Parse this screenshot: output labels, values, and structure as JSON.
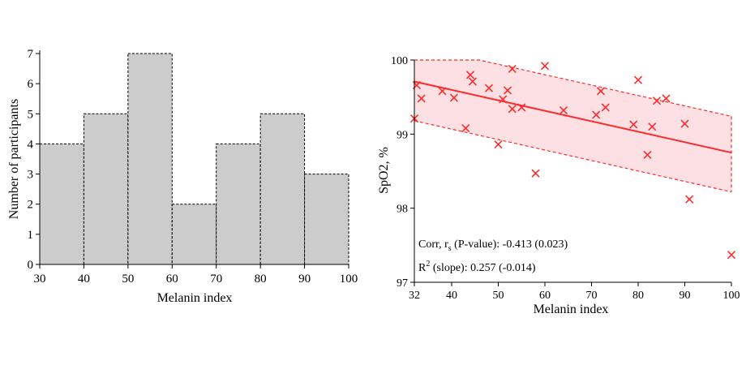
{
  "chart_data": [
    {
      "type": "bar",
      "title": "",
      "xlabel": "Melanin index",
      "ylabel": "Number of participants",
      "bins": [
        [
          30,
          40
        ],
        [
          40,
          50
        ],
        [
          50,
          60
        ],
        [
          60,
          70
        ],
        [
          70,
          80
        ],
        [
          80,
          90
        ],
        [
          90,
          100
        ]
      ],
      "values": [
        4,
        5,
        7,
        2,
        4,
        5,
        3
      ],
      "xlim": [
        30,
        100
      ],
      "ylim": [
        0,
        7
      ],
      "x_ticks": [
        "30",
        "40",
        "50",
        "60",
        "70",
        "80",
        "90",
        "100"
      ],
      "y_ticks": [
        "0",
        "1",
        "2",
        "3",
        "4",
        "5",
        "6",
        "7"
      ],
      "bar_fill": "#cccccc",
      "bar_edge": "#000000",
      "grid": false
    },
    {
      "type": "scatter",
      "title": "",
      "xlabel": "Melanin index",
      "ylabel": "SpO2, %",
      "xlim": [
        32,
        100
      ],
      "ylim": [
        97,
        100
      ],
      "x_ticks": [
        "32",
        "40",
        "50",
        "60",
        "70",
        "80",
        "90",
        "100"
      ],
      "y_ticks": [
        "97",
        "98",
        "99",
        "100"
      ],
      "marker": "x",
      "color": "#ff2a2a",
      "band_color": "#fde0e4",
      "points": [
        {
          "x": 32,
          "y": 99.21
        },
        {
          "x": 32.5,
          "y": 99.66
        },
        {
          "x": 33.5,
          "y": 99.48
        },
        {
          "x": 38,
          "y": 99.58
        },
        {
          "x": 40.5,
          "y": 99.49
        },
        {
          "x": 43,
          "y": 99.08
        },
        {
          "x": 44,
          "y": 99.8
        },
        {
          "x": 44.5,
          "y": 99.71
        },
        {
          "x": 48,
          "y": 99.62
        },
        {
          "x": 50,
          "y": 98.86
        },
        {
          "x": 51,
          "y": 99.47
        },
        {
          "x": 52,
          "y": 99.59
        },
        {
          "x": 53,
          "y": 99.88
        },
        {
          "x": 53,
          "y": 99.34
        },
        {
          "x": 55,
          "y": 99.36
        },
        {
          "x": 58,
          "y": 98.47
        },
        {
          "x": 60,
          "y": 99.92
        },
        {
          "x": 64,
          "y": 99.32
        },
        {
          "x": 71,
          "y": 99.26
        },
        {
          "x": 72,
          "y": 99.58
        },
        {
          "x": 73,
          "y": 99.36
        },
        {
          "x": 79,
          "y": 99.13
        },
        {
          "x": 80,
          "y": 99.73
        },
        {
          "x": 82,
          "y": 98.72
        },
        {
          "x": 83,
          "y": 99.1
        },
        {
          "x": 84,
          "y": 99.45
        },
        {
          "x": 86,
          "y": 99.48
        },
        {
          "x": 90,
          "y": 99.14
        },
        {
          "x": 91,
          "y": 98.12
        },
        {
          "x": 100,
          "y": 97.37
        }
      ],
      "regression": {
        "x": [
          32,
          100
        ],
        "y": [
          99.71,
          98.75
        ]
      },
      "band": {
        "upper": [
          {
            "x": 32,
            "y": 100.0
          },
          {
            "x": 45.9,
            "y": 100.0
          },
          {
            "x": 100,
            "y": 99.24
          }
        ],
        "lower": [
          {
            "x": 32,
            "y": 99.18
          },
          {
            "x": 100,
            "y": 98.22
          }
        ]
      },
      "annotations": {
        "corr": {
          "prefix": "Corr, r",
          "sub": "s",
          "suffix": " (P-value): -0.413 (0.023)"
        },
        "r2": {
          "prefix": "R",
          "sup": "2",
          "suffix": " (slope): 0.257 (-0.014)"
        }
      },
      "grid": false
    }
  ]
}
